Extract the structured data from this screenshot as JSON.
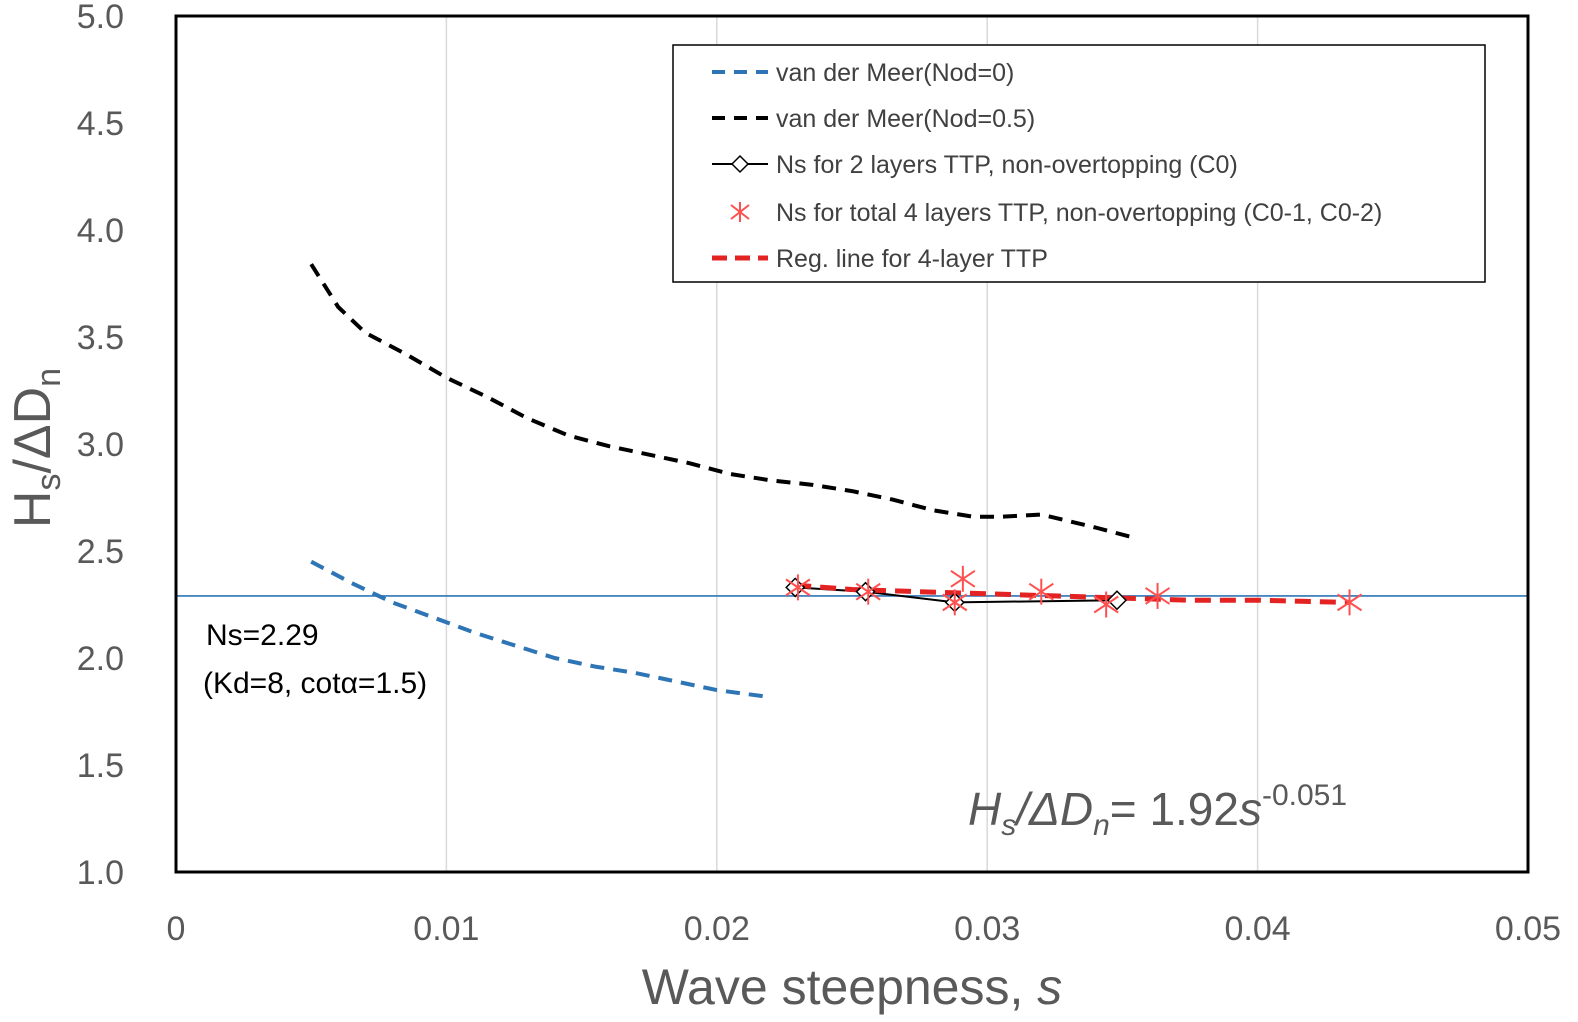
{
  "chart_data": {
    "type": "line",
    "title": "",
    "xlabel_prefix": "Wave steepness, ",
    "xlabel_var": "s",
    "ylabel_main": "H",
    "ylabel_sub": "s",
    "ylabel_mid": "/ΔD",
    "ylabel_sub2": "n",
    "xlim": [
      0,
      0.05
    ],
    "ylim": [
      1.0,
      5.0
    ],
    "x_ticks": [
      "0",
      "0.01",
      "0.02",
      "0.03",
      "0.04",
      "0.05"
    ],
    "x_tick_values": [
      0,
      0.01,
      0.02,
      0.03,
      0.04,
      0.05
    ],
    "y_ticks": [
      "1.0",
      "1.5",
      "2.0",
      "2.5",
      "3.0",
      "3.5",
      "4.0",
      "4.5",
      "5.0"
    ],
    "y_tick_values": [
      1.0,
      1.5,
      2.0,
      2.5,
      3.0,
      3.5,
      4.0,
      4.5,
      5.0
    ],
    "grid": "vertical",
    "legend_position": "top-right",
    "series": [
      {
        "name": "van der Meer(Nod=0)",
        "style": "dashed",
        "color": "#2E75B6",
        "x": [
          0.005,
          0.0065,
          0.008,
          0.0095,
          0.011,
          0.0125,
          0.014,
          0.0155,
          0.017,
          0.0185,
          0.02,
          0.0218
        ],
        "y": [
          2.45,
          2.35,
          2.26,
          2.19,
          2.12,
          2.06,
          2.0,
          1.96,
          1.93,
          1.89,
          1.85,
          1.82
        ]
      },
      {
        "name": "van der Meer(Nod=0.5)",
        "style": "dashed",
        "color": "#000000",
        "x": [
          0.005,
          0.006,
          0.007,
          0.0085,
          0.01,
          0.0115,
          0.013,
          0.0145,
          0.016,
          0.0175,
          0.019,
          0.0205,
          0.022,
          0.0235,
          0.025,
          0.0265,
          0.028,
          0.0295,
          0.0305,
          0.032,
          0.033,
          0.034,
          0.0355
        ],
        "y": [
          3.84,
          3.64,
          3.52,
          3.42,
          3.31,
          3.22,
          3.12,
          3.04,
          2.99,
          2.95,
          2.91,
          2.86,
          2.83,
          2.81,
          2.78,
          2.74,
          2.69,
          2.66,
          2.66,
          2.67,
          2.64,
          2.61,
          2.56
        ]
      },
      {
        "name": "Ns for 2 layers TTP, non-overtopping (C0)",
        "style": "solid-diamond",
        "color": "#000000",
        "x": [
          0.0229,
          0.0255,
          0.0288,
          0.0348
        ],
        "y": [
          2.33,
          2.31,
          2.26,
          2.27
        ]
      },
      {
        "name": "Ns for total 4 layers TTP, non-overtopping (C0-1, C0-2)",
        "style": "asterisk",
        "color": "#FF5050",
        "x": [
          0.023,
          0.0256,
          0.0291,
          0.0288,
          0.032,
          0.0344,
          0.0363,
          0.0434
        ],
        "y": [
          2.33,
          2.31,
          2.37,
          2.26,
          2.31,
          2.25,
          2.29,
          2.26
        ]
      },
      {
        "name": "Reg. line for 4-layer TTP",
        "style": "dashed",
        "color": "#E32222",
        "x": [
          0.0229,
          0.025,
          0.0275,
          0.03,
          0.0325,
          0.035,
          0.0375,
          0.04,
          0.0434
        ],
        "y": [
          2.34,
          2.32,
          2.31,
          2.3,
          2.29,
          2.28,
          2.27,
          2.27,
          2.26
        ]
      }
    ],
    "reference_line": {
      "y": 2.29,
      "color": "#2E75B6"
    },
    "annotations": {
      "ns_line1": "Ns=2.29",
      "ns_line2": "(Kd=8, cotα=1.5)",
      "equation_lhs_h": "H",
      "equation_lhs_s": "s",
      "equation_lhs_mid": "/ΔD",
      "equation_lhs_n": "n",
      "equation_rhs": "= 1.92",
      "equation_var": "s",
      "equation_exp": "-0.051"
    },
    "colors": {
      "axis": "#000000",
      "grid": "#D9D9D9",
      "tick_text": "#595959"
    }
  }
}
